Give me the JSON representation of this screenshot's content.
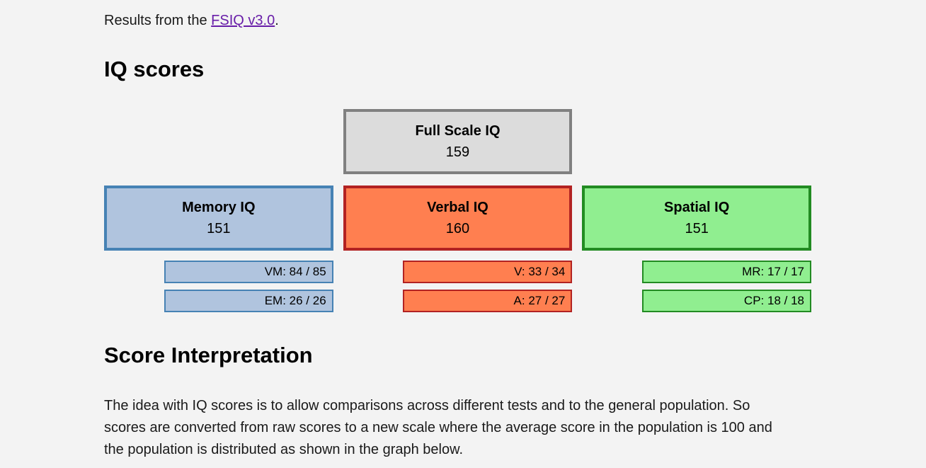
{
  "page_background": "#f3f3f3",
  "intro": {
    "prefix": "Results from the ",
    "link_text": "FSIQ v3.0",
    "suffix": ".",
    "link_color": "#681da8"
  },
  "headings": {
    "scores": "IQ scores",
    "interpretation": "Score Interpretation"
  },
  "full_scale": {
    "label": "Full Scale IQ",
    "value": "159",
    "fill": "#dcdcdc",
    "border": "#808080"
  },
  "categories": [
    {
      "label": "Memory IQ",
      "value": "151",
      "fill": "#b0c4de",
      "border": "#4682b4",
      "subscores": [
        {
          "text": "VM: 84 / 85"
        },
        {
          "text": "EM: 26 / 26"
        }
      ]
    },
    {
      "label": "Verbal IQ",
      "value": "160",
      "fill": "#ff7f50",
      "border": "#b22222",
      "subscores": [
        {
          "text": "V: 33 / 34"
        },
        {
          "text": "A: 27 / 27"
        }
      ]
    },
    {
      "label": "Spatial IQ",
      "value": "151",
      "fill": "#90ee90",
      "border": "#228b22",
      "subscores": [
        {
          "text": "MR: 17 / 17"
        },
        {
          "text": "CP: 18 / 18"
        }
      ]
    }
  ],
  "interpretation_text": "The idea with IQ scores is to allow comparisons across different tests and to the general population. So scores are converted from raw scores to a new scale where the average score in the population is 100 and the population is distributed as shown in the graph below."
}
